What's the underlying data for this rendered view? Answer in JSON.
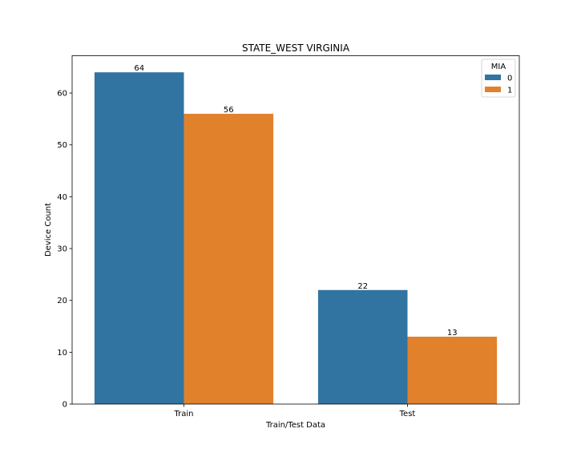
{
  "chart_data": {
    "type": "bar",
    "title": "STATE_WEST VIRGINIA",
    "xlabel": "Train/Test Data",
    "ylabel": "Device Count",
    "categories": [
      "Train",
      "Test"
    ],
    "series": [
      {
        "name": "0",
        "values": [
          64,
          22
        ],
        "color": "#3274a1"
      },
      {
        "name": "1",
        "values": [
          56,
          13
        ],
        "color": "#e1812c"
      }
    ],
    "ylim": [
      0,
      67.2
    ],
    "yticks": [
      0,
      10,
      20,
      30,
      40,
      50,
      60
    ],
    "grid": false,
    "legend": {
      "title": "MIA",
      "placement": "top-right"
    }
  }
}
